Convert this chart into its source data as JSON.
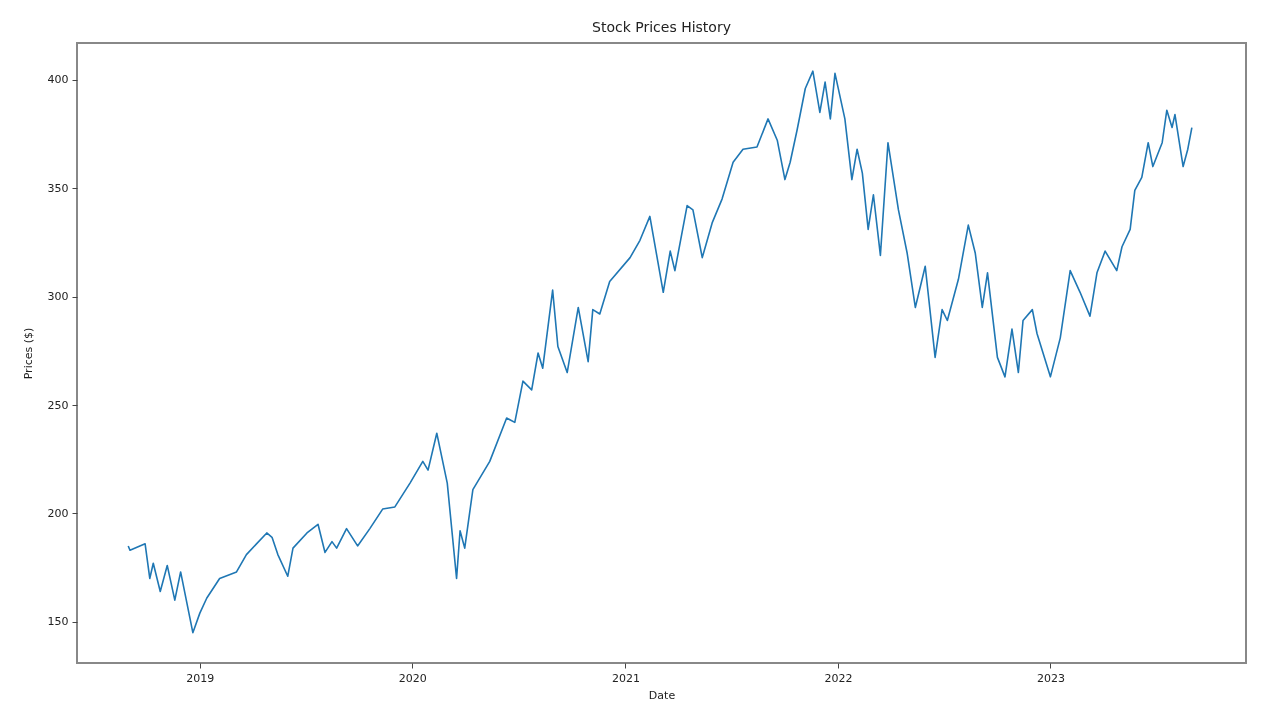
{
  "chart_data": {
    "type": "line",
    "title": "Stock Prices History",
    "xlabel": "Date",
    "ylabel": "Prices ($)",
    "x": [
      "2018-08-31",
      "2018-09-03",
      "2018-09-29",
      "2018-10-07",
      "2018-10-13",
      "2018-10-25",
      "2018-11-06",
      "2018-11-19",
      "2018-11-29",
      "2018-12-20",
      "2019-01-01",
      "2019-01-13",
      "2019-02-04",
      "2019-03-05",
      "2019-03-22",
      "2019-04-26",
      "2019-05-05",
      "2019-05-15",
      "2019-06-01",
      "2019-06-10",
      "2019-07-04",
      "2019-07-23",
      "2019-08-04",
      "2019-08-16",
      "2019-08-24",
      "2019-09-10",
      "2019-09-29",
      "2019-10-20",
      "2019-11-11",
      "2019-12-02",
      "2019-12-28",
      "2020-01-19",
      "2020-01-28",
      "2020-02-12",
      "2020-03-01",
      "2020-03-17",
      "2020-03-23",
      "2020-03-31",
      "2020-04-14",
      "2020-05-13",
      "2020-06-11",
      "2020-06-25",
      "2020-07-09",
      "2020-07-24",
      "2020-08-04",
      "2020-08-12",
      "2020-08-29",
      "2020-09-07",
      "2020-09-23",
      "2020-10-12",
      "2020-10-29",
      "2020-11-06",
      "2020-11-18",
      "2020-12-05",
      "2021-01-09",
      "2021-01-26",
      "2021-02-12",
      "2021-03-07",
      "2021-03-19",
      "2021-03-27",
      "2021-04-17",
      "2021-04-27",
      "2021-05-13",
      "2021-05-30",
      "2021-06-16",
      "2021-07-05",
      "2021-07-22",
      "2021-08-15",
      "2021-09-03",
      "2021-09-19",
      "2021-10-02",
      "2021-10-11",
      "2021-10-23",
      "2021-11-06",
      "2021-11-19",
      "2021-12-01",
      "2021-12-10",
      "2021-12-19",
      "2021-12-27",
      "2022-01-13",
      "2022-01-25",
      "2022-02-03",
      "2022-02-12",
      "2022-02-22",
      "2022-03-03",
      "2022-03-15",
      "2022-03-28",
      "2022-04-15",
      "2022-04-30",
      "2022-05-14",
      "2022-05-31",
      "2022-06-17",
      "2022-06-29",
      "2022-07-08",
      "2022-07-27",
      "2022-08-13",
      "2022-08-25",
      "2022-09-06",
      "2022-09-15",
      "2022-10-02",
      "2022-10-15",
      "2022-10-27",
      "2022-11-07",
      "2022-11-15",
      "2022-12-01",
      "2022-12-09",
      "2023-01-01",
      "2023-01-18",
      "2023-02-04",
      "2023-02-21",
      "2023-03-10",
      "2023-03-22",
      "2023-04-05",
      "2023-04-25",
      "2023-05-04",
      "2023-05-18",
      "2023-05-26",
      "2023-06-07",
      "2023-06-18",
      "2023-06-26",
      "2023-07-12",
      "2023-07-20",
      "2023-07-29",
      "2023-08-03",
      "2023-08-17",
      "2023-08-25",
      "2023-09-01"
    ],
    "series": [
      {
        "color": "#1f77b4",
        "values": [
          185,
          183,
          186,
          170,
          177,
          164,
          176,
          160,
          173,
          145,
          154,
          161,
          170,
          173,
          181,
          191,
          189,
          181,
          171,
          184,
          191,
          195,
          182,
          187,
          184,
          193,
          185,
          193,
          202,
          203,
          214,
          224,
          220,
          237,
          214,
          170,
          192,
          184,
          211,
          224,
          244,
          242,
          261,
          257,
          274,
          267,
          303,
          277,
          265,
          295,
          270,
          294,
          292,
          307,
          318,
          326,
          337,
          302,
          321,
          312,
          342,
          340,
          318,
          334,
          345,
          362,
          368,
          369,
          382,
          372,
          354,
          362,
          377,
          396,
          404,
          385,
          399,
          382,
          403,
          382,
          354,
          368,
          357,
          331,
          347,
          319,
          371,
          340,
          320,
          295,
          314,
          272,
          294,
          289,
          308,
          333,
          320,
          295,
          311,
          272,
          263,
          285,
          265,
          289,
          294,
          283,
          263,
          281,
          312,
          302,
          291,
          311,
          321,
          312,
          323,
          331,
          349,
          355,
          371,
          360,
          371,
          386,
          378,
          384,
          360,
          368,
          378
        ]
      }
    ],
    "xlim": [
      "2018-06-04",
      "2023-12-03"
    ],
    "xticks": [
      "2019",
      "2020",
      "2021",
      "2022",
      "2023"
    ],
    "ylim": [
      131,
      417
    ],
    "yticks": [
      150,
      200,
      250,
      300,
      350,
      400
    ]
  }
}
